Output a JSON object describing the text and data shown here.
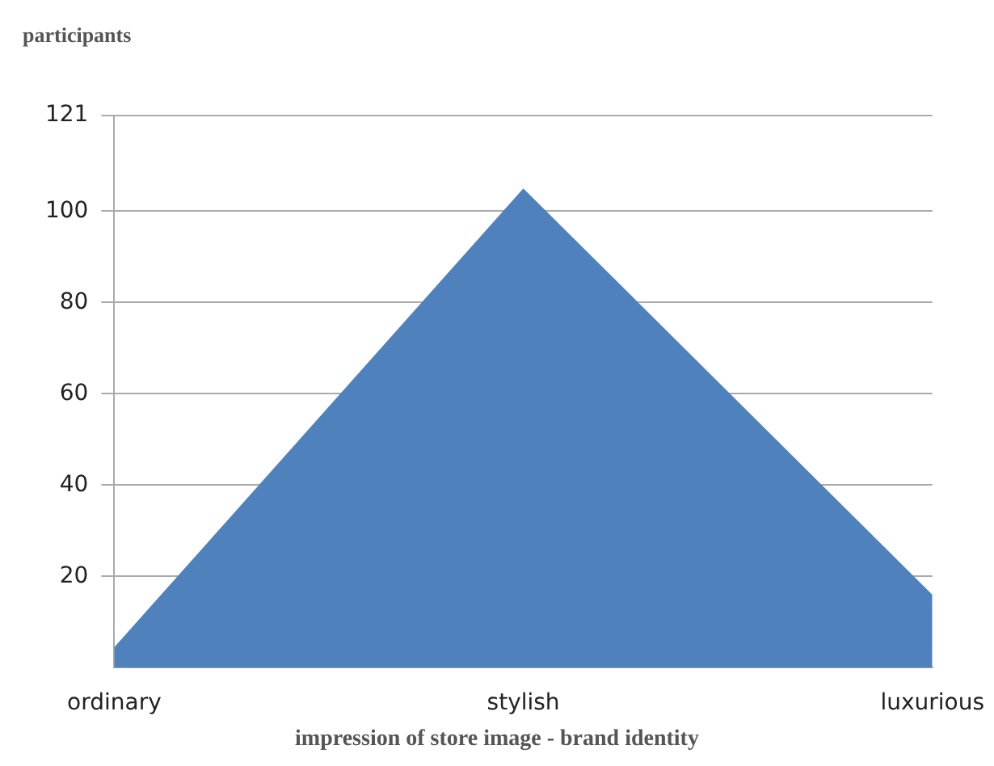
{
  "chart_data": {
    "type": "area",
    "ylabel": "participants",
    "xlabel": "impression of store image - brand identity",
    "categories": [
      "ordinary",
      "stylish",
      "luxurious"
    ],
    "series": [
      {
        "color": "#4f81bd",
        "values": [
          4.5,
          105,
          16
        ]
      }
    ],
    "ylim": [
      0,
      121
    ],
    "yticks": [
      20,
      40,
      60,
      80,
      100,
      121
    ],
    "grid": "y",
    "legend": false
  }
}
